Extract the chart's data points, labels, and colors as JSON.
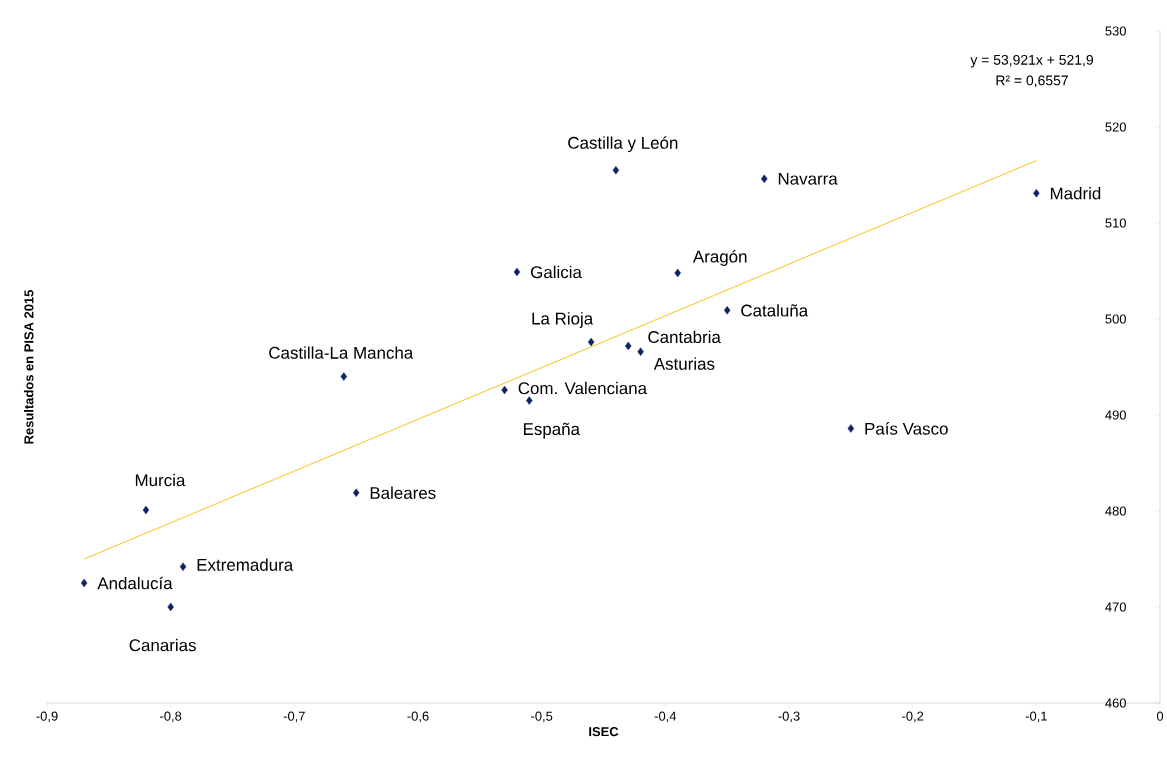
{
  "chart_data": {
    "type": "scatter",
    "xlabel": "ISEC",
    "ylabel": "Resultados en  PISA 2015",
    "xlim": [
      -0.9,
      0
    ],
    "ylim": [
      460,
      530
    ],
    "xticks": [
      {
        "value": -0.9,
        "label": "-0,9"
      },
      {
        "value": -0.8,
        "label": "-0,8"
      },
      {
        "value": -0.7,
        "label": "-0,7"
      },
      {
        "value": -0.6,
        "label": "-0,6"
      },
      {
        "value": -0.5,
        "label": "-0,5"
      },
      {
        "value": -0.4,
        "label": "-0,4"
      },
      {
        "value": -0.3,
        "label": "-0,3"
      },
      {
        "value": -0.2,
        "label": "-0,2"
      },
      {
        "value": -0.1,
        "label": "-0,1"
      },
      0
    ],
    "yticks": [
      460,
      470,
      480,
      490,
      500,
      510,
      520,
      530
    ],
    "grid": false,
    "series": [
      {
        "marker": "diamond",
        "color": "#0d2366",
        "x": [
          -0.87,
          -0.82,
          -0.8,
          -0.79,
          -0.66,
          -0.65,
          -0.53,
          -0.51,
          -0.52,
          -0.46,
          -0.44,
          -0.43,
          -0.42,
          -0.39,
          -0.35,
          -0.32,
          -0.25,
          -0.1
        ],
        "values": [
          472.5,
          480.1,
          470.0,
          474.2,
          494.0,
          481.9,
          492.6,
          491.5,
          504.9,
          497.6,
          515.5,
          497.2,
          496.6,
          504.8,
          500.9,
          514.6,
          488.6,
          513.1
        ]
      },
      {
        "type": "line",
        "color": "#f5c000",
        "line_style": "solid",
        "x": [
          -0.87,
          -0.1
        ],
        "values": [
          475.0,
          516.5
        ]
      }
    ],
    "annotations": [
      {
        "text": "Andalucía",
        "x": -0.87,
        "y": 472.5
      },
      {
        "text": "Murcia",
        "x": -0.82,
        "y": 480.1
      },
      {
        "text": "Canarias",
        "x": -0.8,
        "y": 470.0
      },
      {
        "text": "Extremadura",
        "x": -0.79,
        "y": 474.2
      },
      {
        "text": "Castilla-La Mancha",
        "x": -0.66,
        "y": 494.0
      },
      {
        "text": "Baleares",
        "x": -0.65,
        "y": 481.9
      },
      {
        "text": "Com. Valenciana",
        "x": -0.53,
        "y": 492.6
      },
      {
        "text": "España",
        "x": -0.51,
        "y": 491.5
      },
      {
        "text": "Galicia",
        "x": -0.52,
        "y": 504.9
      },
      {
        "text": "La Rioja",
        "x": -0.46,
        "y": 497.6
      },
      {
        "text": "Castilla y León",
        "x": -0.44,
        "y": 515.5
      },
      {
        "text": "Cantabria",
        "x": -0.43,
        "y": 497.2
      },
      {
        "text": "Asturias",
        "x": -0.42,
        "y": 496.6
      },
      {
        "text": "Aragón",
        "x": -0.39,
        "y": 504.8
      },
      {
        "text": "Cataluña",
        "x": -0.35,
        "y": 500.9
      },
      {
        "text": "Navarra",
        "x": -0.32,
        "y": 514.6
      },
      {
        "text": "País Vasco",
        "x": -0.25,
        "y": 488.6
      },
      {
        "text": "Madrid",
        "x": -0.1,
        "y": 513.1
      },
      "y = 53,921x + 521,9",
      "R² = 0,6557"
    ]
  }
}
